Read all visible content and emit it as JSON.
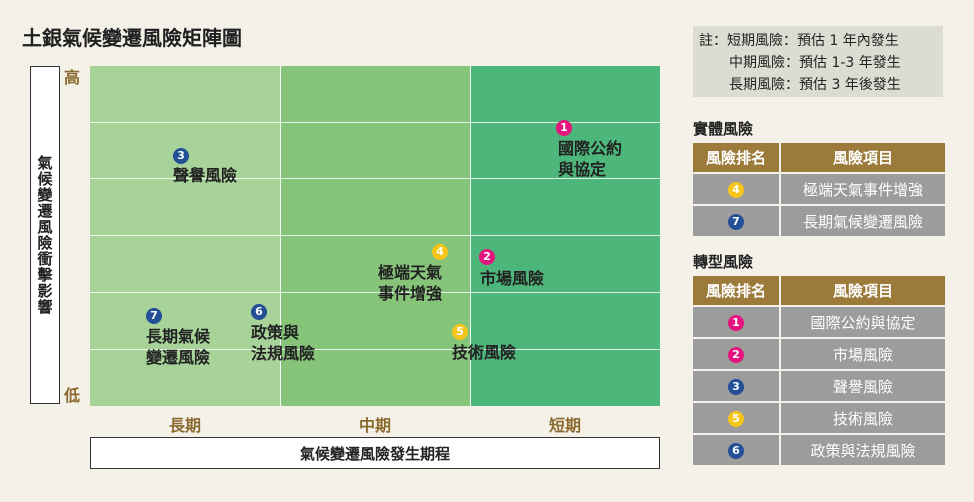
{
  "title": "土銀氣候變遷風險矩陣圖",
  "y_axis": {
    "label": "氣候變遷風險衝擊影響",
    "high": "高",
    "low": "低"
  },
  "x_axis": {
    "label": "氣候變遷風險發生期程",
    "ticks": [
      "長期",
      "中期",
      "短期"
    ]
  },
  "colors": {
    "col1": "#a7d399",
    "col2": "#86c47a",
    "col3": "#4db67a",
    "header": "#9c7b3a",
    "row": "#9c9c9c",
    "magenta": "#e5157f",
    "navy": "#234f96",
    "yellow": "#f5c518"
  },
  "points": [
    {
      "num": "1",
      "color": "magenta",
      "label1": "國際公約",
      "label2": "與協定"
    },
    {
      "num": "2",
      "color": "magenta",
      "label1": "市場風險",
      "label2": ""
    },
    {
      "num": "3",
      "color": "navy",
      "label1": "聲譽風險",
      "label2": ""
    },
    {
      "num": "4",
      "color": "yellow",
      "label1": "極端天氣",
      "label2": "事件增強"
    },
    {
      "num": "5",
      "color": "yellow",
      "label1": "技術風險",
      "label2": ""
    },
    {
      "num": "6",
      "color": "navy",
      "label1": "政策與",
      "label2": "法規風險"
    },
    {
      "num": "7",
      "color": "navy",
      "label1": "長期氣候",
      "label2": "變遷風險"
    }
  ],
  "note": {
    "line1": "註：短期風險：預估 1 年內發生",
    "line2": "中期風險：預估 1-3 年發生",
    "line3": "長期風險：預估 3 年後發生"
  },
  "physical": {
    "title": "實體風險",
    "col_rank": "風險排名",
    "col_item": "風險項目",
    "rows": [
      {
        "num": "4",
        "color": "yellow",
        "item": "極端天氣事件增強"
      },
      {
        "num": "7",
        "color": "navy",
        "item": "長期氣候變遷風險"
      }
    ]
  },
  "transition": {
    "title": "轉型風險",
    "col_rank": "風險排名",
    "col_item": "風險項目",
    "rows": [
      {
        "num": "1",
        "color": "magenta",
        "item": "國際公約與協定"
      },
      {
        "num": "2",
        "color": "magenta",
        "item": "市場風險"
      },
      {
        "num": "3",
        "color": "navy",
        "item": "聲譽風險"
      },
      {
        "num": "5",
        "color": "yellow",
        "item": "技術風險"
      },
      {
        "num": "6",
        "color": "navy",
        "item": "政策與法規風險"
      }
    ]
  }
}
